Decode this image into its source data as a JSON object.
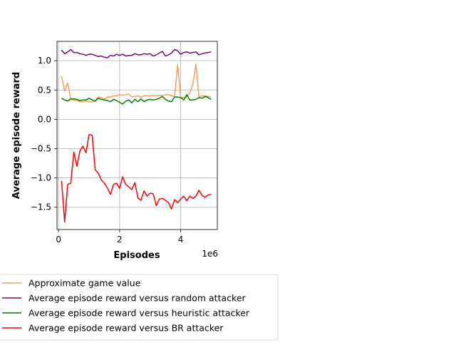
{
  "chart_data": {
    "type": "line",
    "title": "",
    "xlabel": "Episodes",
    "ylabel": "Average episode reward",
    "x_scale_label": "1e6",
    "xlim": [
      -0.05,
      5.2
    ],
    "ylim": [
      -1.88,
      1.33
    ],
    "xticks": [
      0,
      2,
      4
    ],
    "xtick_labels": [
      "0",
      "2",
      "4"
    ],
    "yticks": [
      1.0,
      0.5,
      0.0,
      -0.5,
      -1.0,
      -1.5
    ],
    "ytick_labels": [
      "1.0",
      "0.5",
      "0.0",
      "−0.5",
      "−1.0",
      "−1.5"
    ],
    "grid": true,
    "legend_position": "below the plot, left",
    "x": [
      0.1,
      0.2,
      0.3,
      0.4,
      0.5,
      0.6,
      0.7,
      0.8,
      0.9,
      1.0,
      1.1,
      1.2,
      1.3,
      1.4,
      1.5,
      1.6,
      1.7,
      1.8,
      1.9,
      2.0,
      2.1,
      2.2,
      2.3,
      2.4,
      2.5,
      2.6,
      2.7,
      2.8,
      2.9,
      3.0,
      3.1,
      3.2,
      3.3,
      3.4,
      3.5,
      3.6,
      3.7,
      3.8,
      3.9,
      4.0,
      4.1,
      4.2,
      4.3,
      4.4,
      4.5,
      4.6,
      4.7,
      4.8,
      4.9,
      5.0
    ],
    "series": [
      {
        "name": "Approximate game value",
        "color": "#f5a05a",
        "values": [
          0.73,
          0.48,
          0.62,
          0.34,
          0.33,
          0.32,
          0.3,
          0.3,
          0.31,
          0.3,
          0.29,
          0.32,
          0.38,
          0.37,
          0.34,
          0.38,
          0.38,
          0.4,
          0.4,
          0.42,
          0.41,
          0.42,
          0.43,
          0.38,
          0.39,
          0.4,
          0.38,
          0.4,
          0.4,
          0.4,
          0.41,
          0.4,
          0.41,
          0.41,
          0.42,
          0.42,
          0.4,
          0.39,
          0.93,
          0.38,
          0.37,
          0.38,
          0.45,
          0.6,
          0.94,
          0.38,
          0.4,
          0.4,
          0.39,
          0.38
        ]
      },
      {
        "name": "Average episode reward versus random attacker",
        "color": "#800080",
        "values": [
          1.18,
          1.12,
          1.15,
          1.19,
          1.14,
          1.14,
          1.12,
          1.11,
          1.09,
          1.11,
          1.11,
          1.09,
          1.07,
          1.08,
          1.06,
          1.05,
          1.09,
          1.08,
          1.11,
          1.09,
          1.11,
          1.08,
          1.09,
          1.09,
          1.12,
          1.1,
          1.1,
          1.12,
          1.11,
          1.12,
          1.08,
          1.1,
          1.13,
          1.16,
          1.08,
          1.1,
          1.13,
          1.19,
          1.17,
          1.11,
          1.14,
          1.15,
          1.13,
          1.14,
          1.15,
          1.1,
          1.12,
          1.13,
          1.14,
          1.15
        ]
      },
      {
        "name": "Average episode reward versus heuristic attacker",
        "color": "#008000",
        "values": [
          0.36,
          0.33,
          0.31,
          0.35,
          0.35,
          0.34,
          0.32,
          0.33,
          0.33,
          0.36,
          0.33,
          0.31,
          0.36,
          0.34,
          0.33,
          0.32,
          0.3,
          0.34,
          0.32,
          0.29,
          0.26,
          0.31,
          0.33,
          0.28,
          0.34,
          0.3,
          0.35,
          0.3,
          0.33,
          0.34,
          0.33,
          0.34,
          0.36,
          0.39,
          0.34,
          0.31,
          0.3,
          0.38,
          0.38,
          0.37,
          0.33,
          0.42,
          0.33,
          0.33,
          0.34,
          0.37,
          0.36,
          0.39,
          0.37,
          0.34
        ]
      },
      {
        "name": "Average episode reward versus BR attacker",
        "color": "#ff0000",
        "values": [
          -1.05,
          -1.75,
          -1.11,
          -1.09,
          -0.56,
          -0.8,
          -0.54,
          -0.46,
          -0.57,
          -0.26,
          -0.27,
          -0.86,
          -0.92,
          -1.03,
          -1.09,
          -1.17,
          -1.28,
          -1.11,
          -1.09,
          -1.18,
          -0.98,
          -1.11,
          -1.15,
          -1.2,
          -1.08,
          -1.34,
          -1.38,
          -1.22,
          -1.31,
          -1.26,
          -1.27,
          -1.47,
          -1.36,
          -1.35,
          -1.38,
          -1.42,
          -1.53,
          -1.37,
          -1.42,
          -1.36,
          -1.31,
          -1.39,
          -1.31,
          -1.35,
          -1.31,
          -1.21,
          -1.3,
          -1.33,
          -1.29,
          -1.28
        ]
      }
    ]
  }
}
